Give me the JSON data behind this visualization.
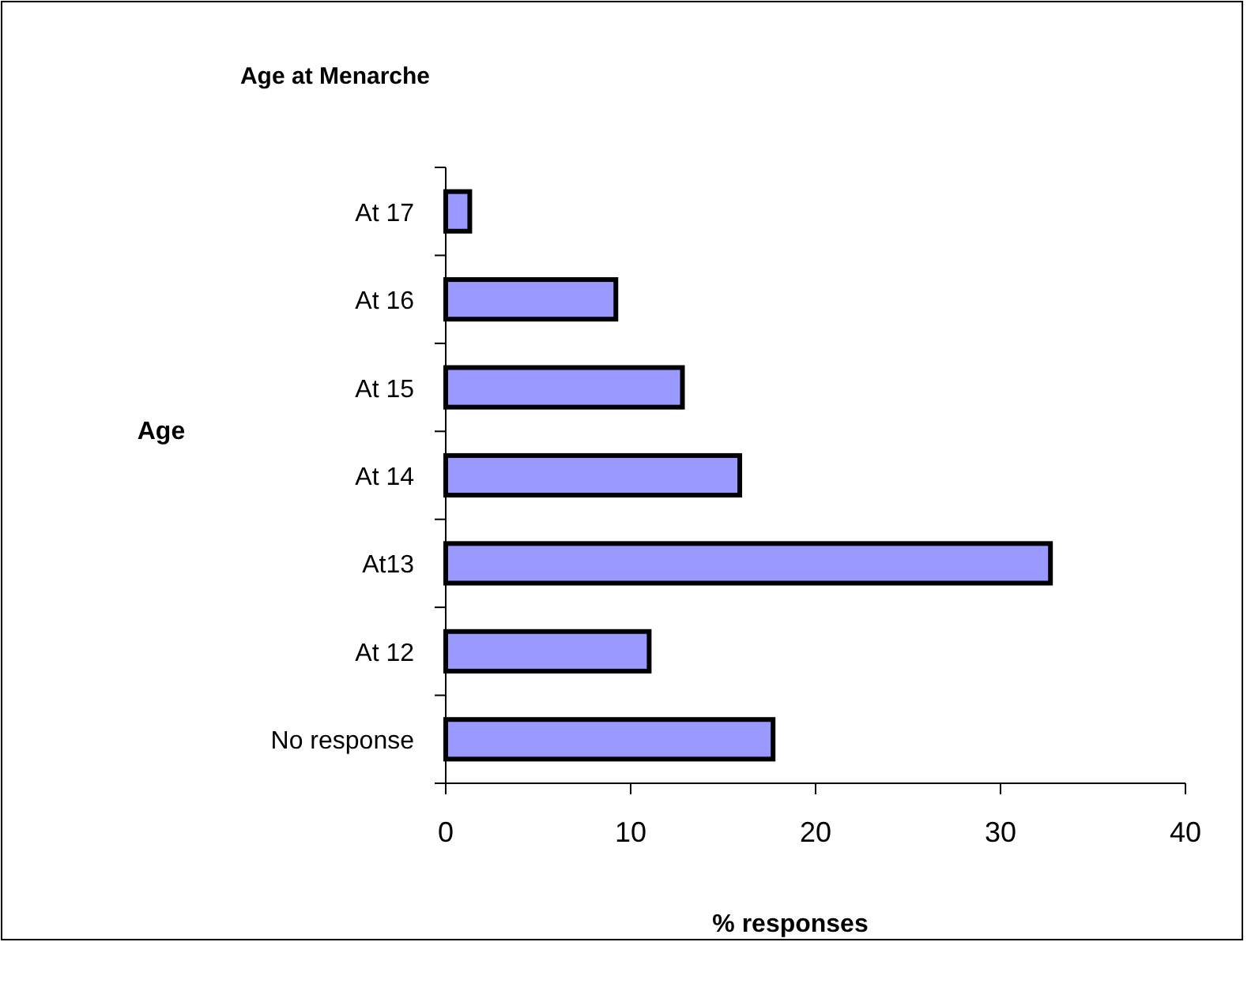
{
  "chart_data": {
    "type": "bar",
    "orientation": "horizontal",
    "title": "Age at Menarche",
    "xlabel": "% responses",
    "ylabel": "Age",
    "categories": [
      "At 17",
      "At 16",
      "At 15",
      "At 14",
      "At13",
      "At 12",
      "No response"
    ],
    "values": [
      1.3,
      9.2,
      12.8,
      15.9,
      32.7,
      11.0,
      17.7
    ],
    "color": "#9999ff",
    "xlim": [
      0,
      40
    ],
    "xticks": [
      0,
      10,
      20,
      30,
      40
    ],
    "grid": false
  }
}
